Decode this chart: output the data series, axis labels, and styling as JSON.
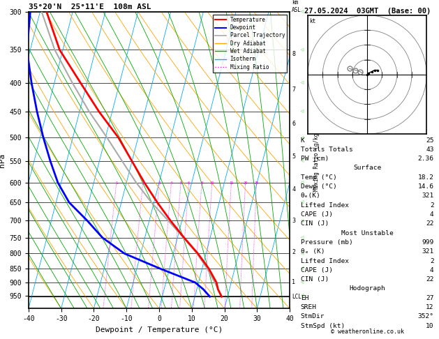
{
  "title_left": "35°20'N  25°11'E  108m ASL",
  "title_right": "27.05.2024  03GMT  (Base: 00)",
  "xlabel": "Dewpoint / Temperature (°C)",
  "ylabel_left": "hPa",
  "pressure_ticks": [
    300,
    350,
    400,
    450,
    500,
    550,
    600,
    650,
    700,
    750,
    800,
    850,
    900,
    950
  ],
  "temp_range": [
    -40,
    40
  ],
  "lcl_pressure": 953,
  "mixing_ratio_vals": [
    1,
    2,
    3,
    4,
    5,
    6,
    8,
    10,
    15,
    20,
    25
  ],
  "km_levels": [
    1,
    2,
    3,
    4,
    5,
    6,
    7,
    8
  ],
  "km_pressures": [
    899,
    795,
    701,
    616,
    540,
    472,
    411,
    356
  ],
  "skew": 45.0,
  "temperature_profile": {
    "pressure": [
      953,
      925,
      900,
      850,
      800,
      750,
      700,
      650,
      600,
      550,
      500,
      450,
      400,
      350,
      300
    ],
    "temp": [
      18.2,
      16.5,
      15.5,
      12.0,
      7.5,
      2.0,
      -3.5,
      -9.0,
      -14.5,
      -20.0,
      -26.0,
      -34.0,
      -42.0,
      -51.0,
      -58.0
    ]
  },
  "dewpoint_profile": {
    "pressure": [
      953,
      925,
      900,
      850,
      800,
      750,
      700,
      650,
      600,
      550,
      500,
      450,
      400,
      350,
      300
    ],
    "dewp": [
      14.6,
      12.0,
      9.0,
      -3.0,
      -15.0,
      -23.0,
      -29.0,
      -36.0,
      -41.0,
      -45.0,
      -49.0,
      -53.0,
      -57.0,
      -61.0,
      -63.0
    ]
  },
  "parcel_profile": {
    "pressure": [
      953,
      900,
      850,
      800,
      750,
      700,
      650,
      600,
      550,
      500,
      450,
      400,
      350,
      300
    ],
    "temp": [
      18.2,
      15.0,
      11.5,
      7.2,
      1.8,
      -4.2,
      -10.8,
      -17.0,
      -23.0,
      -29.5,
      -37.0,
      -44.5,
      -52.5,
      -59.5
    ]
  },
  "background_color": "#ffffff",
  "temp_color": "#ff0000",
  "dewp_color": "#0000ff",
  "parcel_color": "#aaaaaa",
  "dry_adiabat_color": "#ffa500",
  "wet_adiabat_color": "#00aa00",
  "isotherm_color": "#00aaff",
  "mixing_ratio_color": "#ff00ff",
  "wind_barb_color": "#00cc00",
  "stats": {
    "K": 25,
    "Totals_Totals": 43,
    "PW_cm": 2.36,
    "Surface": {
      "Temp_C": 18.2,
      "Dewp_C": 14.6,
      "theta_e_K": 321,
      "Lifted_Index": 2,
      "CAPE_J": 4,
      "CIN_J": 22
    },
    "Most_Unstable": {
      "Pressure_mb": 999,
      "theta_e_K": 321,
      "Lifted_Index": 2,
      "CAPE_J": 4,
      "CIN_J": 22
    },
    "Hodograph": {
      "EH": 27,
      "SREH": 12,
      "StmDir": 352,
      "StmSpd_kt": 10
    }
  },
  "hodo_u": [
    0,
    1,
    3,
    5,
    7
  ],
  "hodo_v": [
    0,
    1,
    2,
    3,
    3
  ],
  "hodo_gray_u": [
    -12,
    -8,
    -5,
    -3
  ],
  "hodo_gray_v": [
    4,
    3,
    2,
    1
  ],
  "wind_barb_pressures": [
    300,
    350,
    400,
    450,
    500,
    550,
    600,
    650,
    700,
    750,
    800,
    850,
    900,
    950
  ],
  "wind_barb_u": [
    -2,
    -3,
    -4,
    -5,
    -5,
    -4,
    -3,
    -2,
    -2,
    -3,
    -4,
    -5,
    -5,
    -4
  ],
  "wind_barb_v": [
    8,
    7,
    6,
    6,
    5,
    4,
    3,
    2,
    1,
    1,
    2,
    3,
    4,
    5
  ]
}
